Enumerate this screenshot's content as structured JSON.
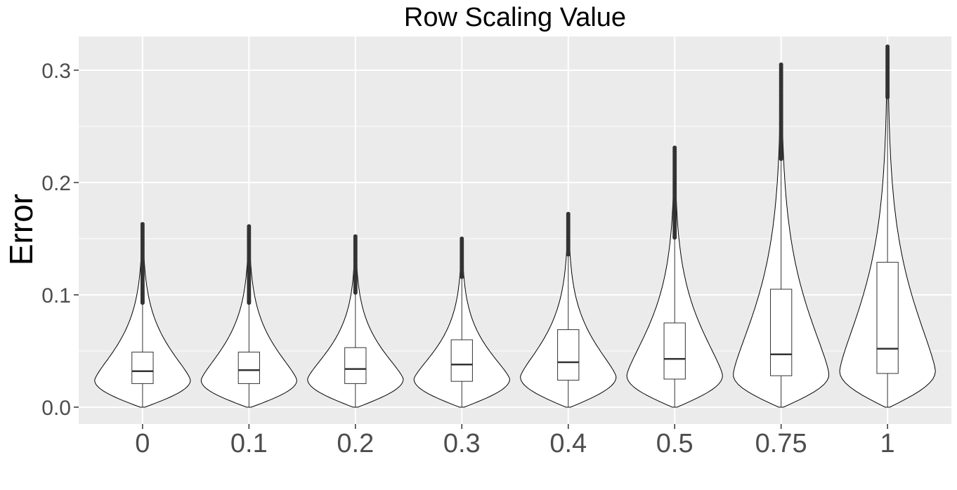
{
  "chart_data": {
    "type": "violin",
    "title": "Row Scaling Value",
    "xlabel": "",
    "ylabel": "Error",
    "ylim": [
      -0.015,
      0.33
    ],
    "yticks": [
      0.0,
      0.1,
      0.2,
      0.3
    ],
    "ytick_labels": [
      "0.0",
      "0.1",
      "0.2",
      "0.3"
    ],
    "grid": true,
    "background": "#ebebeb",
    "categories": [
      "0",
      "0.1",
      "0.2",
      "0.3",
      "0.4",
      "0.5",
      "0.75",
      "1"
    ],
    "violins": [
      {
        "category": "0",
        "min": 0.0,
        "q1": 0.021,
        "median": 0.032,
        "q3": 0.049,
        "whisker_high": 0.092,
        "outliers_from": 0.093,
        "max": 0.163,
        "peak_y": 0.024,
        "peak_halfwidth": 0.45
      },
      {
        "category": "0.1",
        "min": 0.0,
        "q1": 0.021,
        "median": 0.033,
        "q3": 0.049,
        "whisker_high": 0.092,
        "outliers_from": 0.093,
        "max": 0.161,
        "peak_y": 0.024,
        "peak_halfwidth": 0.45
      },
      {
        "category": "0.2",
        "min": 0.0,
        "q1": 0.021,
        "median": 0.034,
        "q3": 0.053,
        "whisker_high": 0.101,
        "outliers_from": 0.102,
        "max": 0.152,
        "peak_y": 0.025,
        "peak_halfwidth": 0.45
      },
      {
        "category": "0.3",
        "min": 0.0,
        "q1": 0.023,
        "median": 0.038,
        "q3": 0.06,
        "whisker_high": 0.115,
        "outliers_from": 0.116,
        "max": 0.15,
        "peak_y": 0.025,
        "peak_halfwidth": 0.45
      },
      {
        "category": "0.4",
        "min": 0.0,
        "q1": 0.024,
        "median": 0.04,
        "q3": 0.069,
        "whisker_high": 0.135,
        "outliers_from": 0.136,
        "max": 0.172,
        "peak_y": 0.027,
        "peak_halfwidth": 0.45
      },
      {
        "category": "0.5",
        "min": 0.0,
        "q1": 0.025,
        "median": 0.043,
        "q3": 0.075,
        "whisker_high": 0.15,
        "outliers_from": 0.151,
        "max": 0.231,
        "peak_y": 0.028,
        "peak_halfwidth": 0.45
      },
      {
        "category": "0.75",
        "min": 0.0,
        "q1": 0.028,
        "median": 0.047,
        "q3": 0.105,
        "whisker_high": 0.22,
        "outliers_from": 0.221,
        "max": 0.305,
        "peak_y": 0.029,
        "peak_halfwidth": 0.45
      },
      {
        "category": "1",
        "min": 0.0,
        "q1": 0.03,
        "median": 0.052,
        "q3": 0.129,
        "whisker_high": 0.275,
        "outliers_from": 0.276,
        "max": 0.321,
        "peak_y": 0.032,
        "peak_halfwidth": 0.45
      }
    ]
  }
}
